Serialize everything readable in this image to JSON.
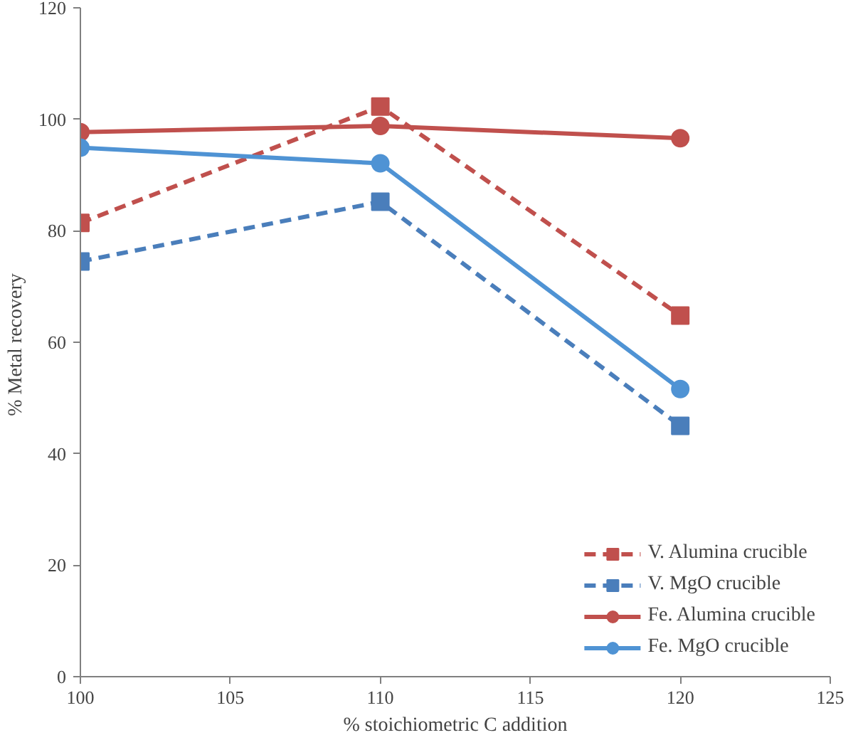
{
  "chart_data": {
    "type": "line",
    "xlabel": "% stoichiometric C addition",
    "ylabel": "% Metal  recovery",
    "x": [
      100,
      110,
      120
    ],
    "xlim": [
      100,
      125
    ],
    "xticks": [
      100,
      105,
      110,
      115,
      120,
      125
    ],
    "ylim": [
      0,
      120
    ],
    "yticks": [
      0,
      20,
      40,
      60,
      80,
      100,
      120
    ],
    "grid": false,
    "legend": "bottom right",
    "series": [
      {
        "name": "V. Alumina crucible",
        "color": "#c0504d",
        "values": [
          81.4,
          102.3,
          64.8
        ],
        "marker": "square",
        "line_style": "dashed"
      },
      {
        "name": "V. MgO crucible",
        "color": "#4a7ebb",
        "values": [
          74.5,
          85.2,
          45.0
        ],
        "marker": "square",
        "line_style": "dashed"
      },
      {
        "name": "Fe. Alumina crucible",
        "color": "#c0504d",
        "values": [
          97.7,
          98.8,
          96.6
        ],
        "marker": "circle",
        "line_style": "solid"
      },
      {
        "name": "Fe. MgO crucible",
        "color": "#4f93d4",
        "values": [
          94.9,
          92.1,
          51.6
        ],
        "marker": "circle",
        "line_style": "solid"
      }
    ]
  }
}
